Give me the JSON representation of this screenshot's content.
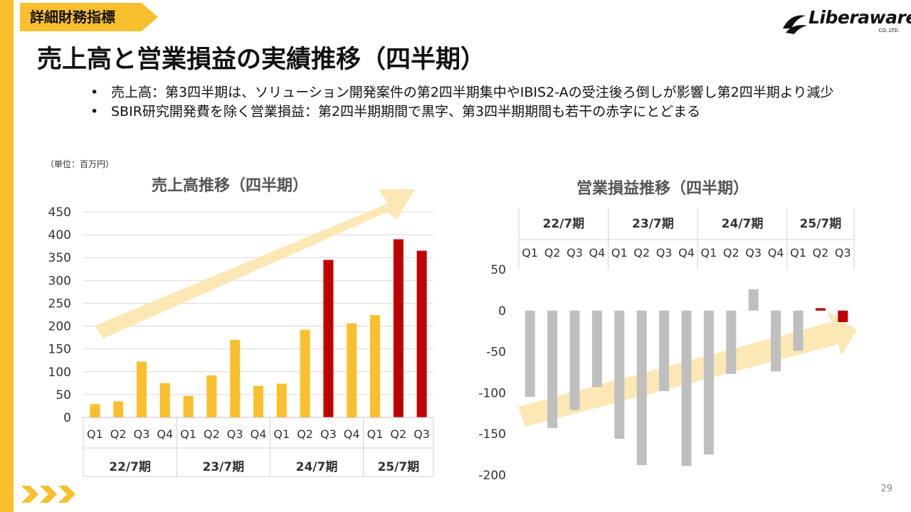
{
  "header": {
    "section_tag": "詳細財務指標",
    "title": "売上高と営業損益の実績推移（四半期）",
    "logo_text": "Liberaware",
    "logo_sub": "CO.,LTD."
  },
  "bullets": [
    "売上高：第3四半期は、ソリューション開発案件の第2四半期集中やIBIS2-Aの受注後ろ倒しが影響し第2四半期より減少",
    "SBIR研究開発費を除く営業損益：第2四半期期間で黒字、第3四半期期間も若干の赤字にとどまる"
  ],
  "unit_label": "（単位：百万円）",
  "page_number": "29",
  "colors": {
    "accent": "#FABF2C",
    "highlight": "#C00000",
    "negative": "#BFBFBF",
    "arrow": "#FCE4A8"
  },
  "chart_data": [
    {
      "type": "bar",
      "title": "売上高推移（四半期）",
      "categories": [
        "Q1",
        "Q2",
        "Q3",
        "Q4",
        "Q1",
        "Q2",
        "Q3",
        "Q4",
        "Q1",
        "Q2",
        "Q3",
        "Q4",
        "Q1",
        "Q2",
        "Q3"
      ],
      "groups": [
        {
          "label": "22/7期",
          "count": 4
        },
        {
          "label": "23/7期",
          "count": 4
        },
        {
          "label": "24/7期",
          "count": 4
        },
        {
          "label": "25/7期",
          "count": 3
        }
      ],
      "values": [
        29,
        35,
        122,
        75,
        47,
        92,
        170,
        69,
        74,
        192,
        345,
        206,
        224,
        390,
        365
      ],
      "highlighted": [
        10,
        13,
        14
      ],
      "ylim": [
        0,
        450
      ],
      "yticks": [
        0,
        50,
        100,
        150,
        200,
        250,
        300,
        350,
        400,
        450
      ],
      "grid": true
    },
    {
      "type": "bar",
      "title": "営業損益推移（四半期）",
      "categories": [
        "Q1",
        "Q2",
        "Q3",
        "Q4",
        "Q1",
        "Q2",
        "Q3",
        "Q4",
        "Q1",
        "Q2",
        "Q3",
        "Q4",
        "Q1",
        "Q2",
        "Q3"
      ],
      "groups": [
        {
          "label": "22/7期",
          "count": 4
        },
        {
          "label": "23/7期",
          "count": 4
        },
        {
          "label": "24/7期",
          "count": 4
        },
        {
          "label": "25/7期",
          "count": 3
        }
      ],
      "values": [
        -105,
        -143,
        -121,
        -93,
        -156,
        -188,
        -98,
        -189,
        -175,
        -77,
        26,
        -74,
        -49,
        3,
        -14
      ],
      "highlighted": [
        13,
        14
      ],
      "ylim": [
        -200,
        50
      ],
      "yticks": [
        -200,
        -150,
        -100,
        -50,
        0,
        50
      ],
      "grid": false
    }
  ]
}
